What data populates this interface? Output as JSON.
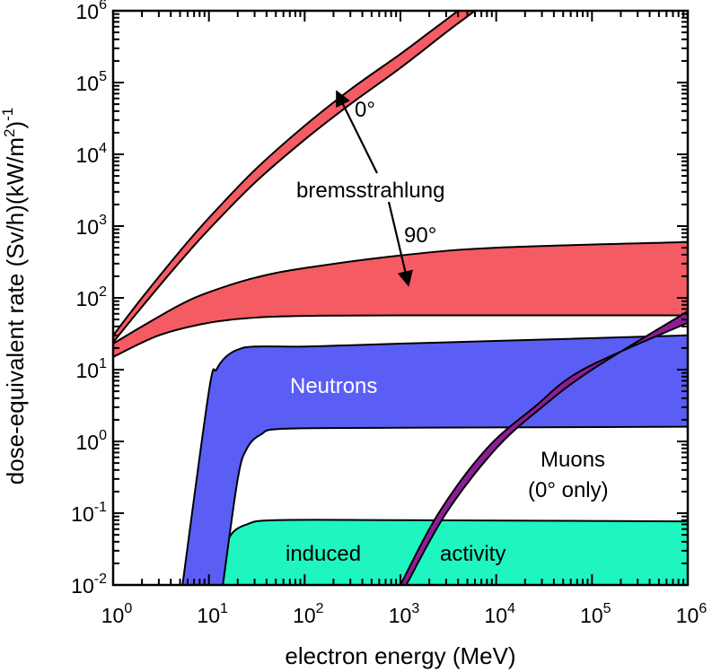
{
  "chart_data": {
    "type": "area",
    "x_scale": "log",
    "y_scale": "log",
    "xlim": [
      1,
      1000000
    ],
    "ylim": [
      0.01,
      1000000
    ],
    "xlabel": "electron energy (MeV)",
    "ylabel_main": "dose-equivalent rate  (Sv/h)(kW/m",
    "ylabel_sup": "2",
    "ylabel_end": ")",
    "ylabel_exp": "-1",
    "x_tick_labels": [
      {
        "value": 1,
        "base": "10",
        "exp": "0"
      },
      {
        "value": 10,
        "base": "10",
        "exp": "1"
      },
      {
        "value": 100,
        "base": "10",
        "exp": "2"
      },
      {
        "value": 1000,
        "base": "10",
        "exp": "3"
      },
      {
        "value": 10000,
        "base": "10",
        "exp": "4"
      },
      {
        "value": 100000,
        "base": "10",
        "exp": "5"
      },
      {
        "value": 1000000,
        "base": "10",
        "exp": "6"
      }
    ],
    "y_tick_labels": [
      {
        "value": 0.01,
        "base": "10",
        "exp": "-2"
      },
      {
        "value": 0.1,
        "base": "10",
        "exp": "-1"
      },
      {
        "value": 1,
        "base": "10",
        "exp": "0"
      },
      {
        "value": 10,
        "base": "10",
        "exp": "1"
      },
      {
        "value": 100,
        "base": "10",
        "exp": "2"
      },
      {
        "value": 1000,
        "base": "10",
        "exp": "3"
      },
      {
        "value": 10000,
        "base": "10",
        "exp": "4"
      },
      {
        "value": 100000,
        "base": "10",
        "exp": "5"
      },
      {
        "value": 1000000,
        "base": "10",
        "exp": "6"
      }
    ],
    "series": [
      {
        "name": "induced activity",
        "color": "#1ef5c0",
        "upper": [
          [
            14,
            0.01
          ],
          [
            14.5,
            0.025
          ],
          [
            17,
            0.05
          ],
          [
            25,
            0.07
          ],
          [
            50,
            0.08
          ],
          [
            1000,
            0.08
          ],
          [
            1000000,
            0.077
          ]
        ],
        "lower": [
          [
            14,
            0.01
          ],
          [
            1000000,
            0.01
          ]
        ]
      },
      {
        "name": "Neutrons",
        "color": "#5b5ef5",
        "upper": [
          [
            5.3,
            0.01
          ],
          [
            10,
            5
          ],
          [
            12,
            10
          ],
          [
            15,
            15
          ],
          [
            20,
            19
          ],
          [
            30,
            21
          ],
          [
            100,
            21
          ],
          [
            1000,
            23
          ],
          [
            1000000,
            30
          ]
        ],
        "lower": [
          [
            14,
            0.01
          ],
          [
            20,
            0.3
          ],
          [
            25,
            0.8
          ],
          [
            35,
            1.25
          ],
          [
            60,
            1.5
          ],
          [
            1000,
            1.55
          ],
          [
            1000000,
            1.6
          ]
        ]
      },
      {
        "name": "bremsstrahlung 90°",
        "color": "#f55b62",
        "upper": [
          [
            1,
            23
          ],
          [
            2,
            40
          ],
          [
            5,
            80
          ],
          [
            10,
            120
          ],
          [
            30,
            190
          ],
          [
            100,
            260
          ],
          [
            1000,
            390
          ],
          [
            10000,
            500
          ],
          [
            1000000,
            600
          ]
        ],
        "lower": [
          [
            1,
            15
          ],
          [
            3,
            30
          ],
          [
            10,
            45
          ],
          [
            30,
            53
          ],
          [
            100,
            56
          ],
          [
            1000,
            57
          ],
          [
            1000000,
            57
          ]
        ]
      },
      {
        "name": "bremsstrahlung 0°",
        "color": "#f55b62",
        "upper": [
          [
            1,
            30
          ],
          [
            2,
            100
          ],
          [
            5,
            450
          ],
          [
            10,
            1300
          ],
          [
            30,
            6000
          ],
          [
            100,
            25000
          ],
          [
            300,
            80000
          ],
          [
            1000,
            250000
          ],
          [
            2000,
            500000
          ],
          [
            4000,
            1000000
          ]
        ],
        "lower": [
          [
            1,
            24
          ],
          [
            2,
            75
          ],
          [
            5,
            320
          ],
          [
            10,
            900
          ],
          [
            30,
            4000
          ],
          [
            100,
            16000
          ],
          [
            300,
            50000
          ],
          [
            1000,
            160000
          ],
          [
            3000,
            500000
          ],
          [
            6000,
            1000000
          ]
        ]
      },
      {
        "name": "Muons",
        "color": "#8c1e96",
        "upper": [
          [
            1150,
            0.01
          ],
          [
            3000,
            0.1
          ],
          [
            10000,
            0.8
          ],
          [
            30000,
            3
          ],
          [
            100000,
            10
          ],
          [
            1000000,
            65
          ]
        ],
        "lower": [
          [
            1000,
            0.01
          ],
          [
            2500,
            0.1
          ],
          [
            8000,
            0.8
          ],
          [
            25000,
            3
          ],
          [
            80000,
            10
          ],
          [
            1000000,
            45
          ]
        ]
      }
    ],
    "annotations": {
      "bremsstrahlung": "bremsstrahlung",
      "angle_0": "0°",
      "angle_90": "90°",
      "neutrons": "Neutrons",
      "muons_line1": "Muons",
      "muons_line2": "(0° only)",
      "induced_word1": "induced",
      "induced_word2": "activity"
    },
    "colors": {
      "axis": "#000000",
      "background": "#ffffff",
      "label_on_band": "#ffffff",
      "label_text": "#000000"
    }
  }
}
